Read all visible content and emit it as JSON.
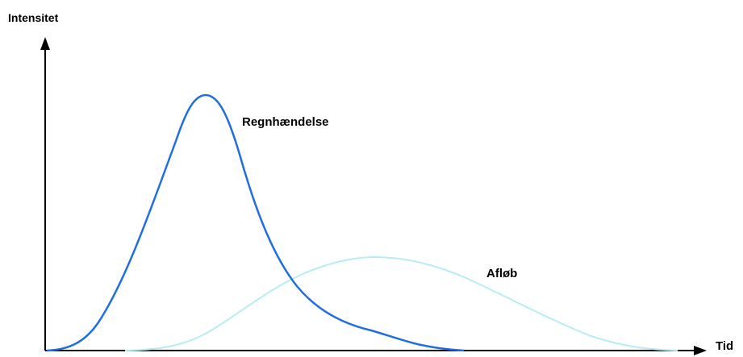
{
  "axes": {
    "y_label": "Intensitet",
    "x_label": "Tid"
  },
  "curves": [
    {
      "label": "Regnhændelse",
      "color": "#1f6fe0"
    },
    {
      "label": "Afløb",
      "color": "#b8ecf5"
    }
  ],
  "colors": {
    "axis": "#000000"
  }
}
